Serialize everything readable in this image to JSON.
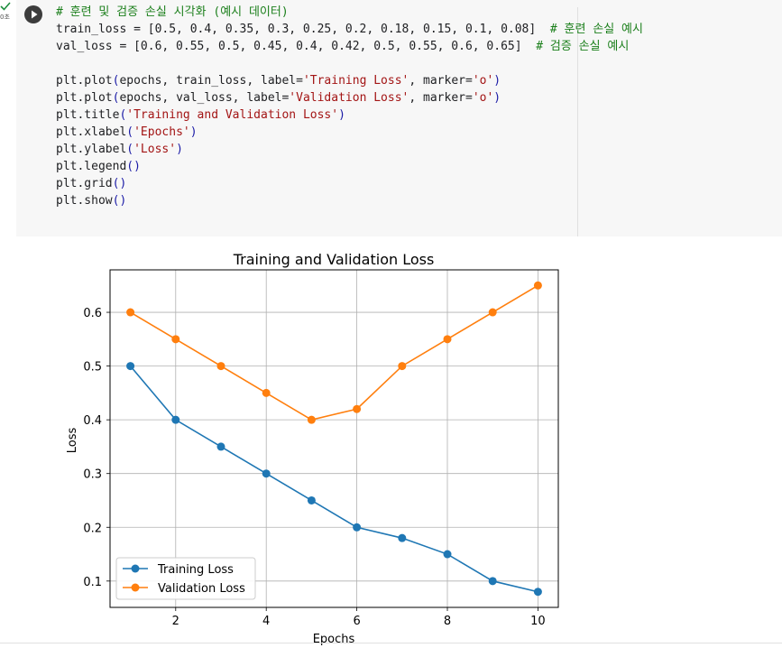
{
  "cell": {
    "status": "check",
    "exec_time": "0초",
    "code_lines": [
      [
        {
          "t": "# 훈련 및 검증 손실 시각화 (예시 데이터)",
          "c": "comment"
        }
      ],
      [
        {
          "t": "train_loss = [0.5, 0.4, 0.35, 0.3, 0.25, 0.2, 0.18, 0.15, 0.1, 0.08]  "
        },
        {
          "t": "# 훈련 손실 예시",
          "c": "comment"
        }
      ],
      [
        {
          "t": "val_loss = [0.6, 0.55, 0.5, 0.45, 0.4, 0.42, 0.5, 0.55, 0.6, 0.65]  "
        },
        {
          "t": "# 검증 손실 예시",
          "c": "comment"
        }
      ],
      [
        {
          "t": ""
        }
      ],
      [
        {
          "t": "plt.plot"
        },
        {
          "t": "(",
          "c": "paren"
        },
        {
          "t": "epochs, train_loss, label="
        },
        {
          "t": "'Training Loss'",
          "c": "str"
        },
        {
          "t": ", marker="
        },
        {
          "t": "'o'",
          "c": "str"
        },
        {
          "t": ")",
          "c": "paren"
        }
      ],
      [
        {
          "t": "plt.plot"
        },
        {
          "t": "(",
          "c": "paren"
        },
        {
          "t": "epochs, val_loss, label="
        },
        {
          "t": "'Validation Loss'",
          "c": "str"
        },
        {
          "t": ", marker="
        },
        {
          "t": "'o'",
          "c": "str"
        },
        {
          "t": ")",
          "c": "paren"
        }
      ],
      [
        {
          "t": "plt.title"
        },
        {
          "t": "(",
          "c": "paren"
        },
        {
          "t": "'Training and Validation Loss'",
          "c": "str"
        },
        {
          "t": ")",
          "c": "paren"
        }
      ],
      [
        {
          "t": "plt.xlabel"
        },
        {
          "t": "(",
          "c": "paren"
        },
        {
          "t": "'Epochs'",
          "c": "str"
        },
        {
          "t": ")",
          "c": "paren"
        }
      ],
      [
        {
          "t": "plt.ylabel"
        },
        {
          "t": "(",
          "c": "paren"
        },
        {
          "t": "'Loss'",
          "c": "str"
        },
        {
          "t": ")",
          "c": "paren"
        }
      ],
      [
        {
          "t": "plt.legend"
        },
        {
          "t": "()",
          "c": "paren"
        }
      ],
      [
        {
          "t": "plt.grid"
        },
        {
          "t": "()",
          "c": "paren"
        }
      ],
      [
        {
          "t": "plt.show"
        },
        {
          "t": "()",
          "c": "paren"
        }
      ]
    ]
  },
  "colors": {
    "comment": "#1b7f1b",
    "string": "#a31515",
    "paren": "#1a1aa6",
    "series_train": "#1f77b4",
    "series_val": "#ff7f0e"
  },
  "icons": {
    "run": "play-circle-icon",
    "output": "output-toggle-icon",
    "status": "check-icon"
  },
  "chart_data": {
    "type": "line",
    "title": "Training and Validation Loss",
    "xlabel": "Epochs",
    "ylabel": "Loss",
    "x": [
      1,
      2,
      3,
      4,
      5,
      6,
      7,
      8,
      9,
      10
    ],
    "series": [
      {
        "name": "Training Loss",
        "values": [
          0.5,
          0.4,
          0.35,
          0.3,
          0.25,
          0.2,
          0.18,
          0.15,
          0.1,
          0.08
        ]
      },
      {
        "name": "Validation Loss",
        "values": [
          0.6,
          0.55,
          0.5,
          0.45,
          0.4,
          0.42,
          0.5,
          0.55,
          0.6,
          0.65
        ]
      }
    ],
    "xticks": [
      2,
      4,
      6,
      8,
      10
    ],
    "yticks": [
      0.1,
      0.2,
      0.3,
      0.4,
      0.5,
      0.6
    ],
    "xlim": [
      0.55,
      10.45
    ],
    "ylim": [
      0.051,
      0.679
    ],
    "grid": true,
    "legend": "lower-left",
    "marker": "o"
  }
}
